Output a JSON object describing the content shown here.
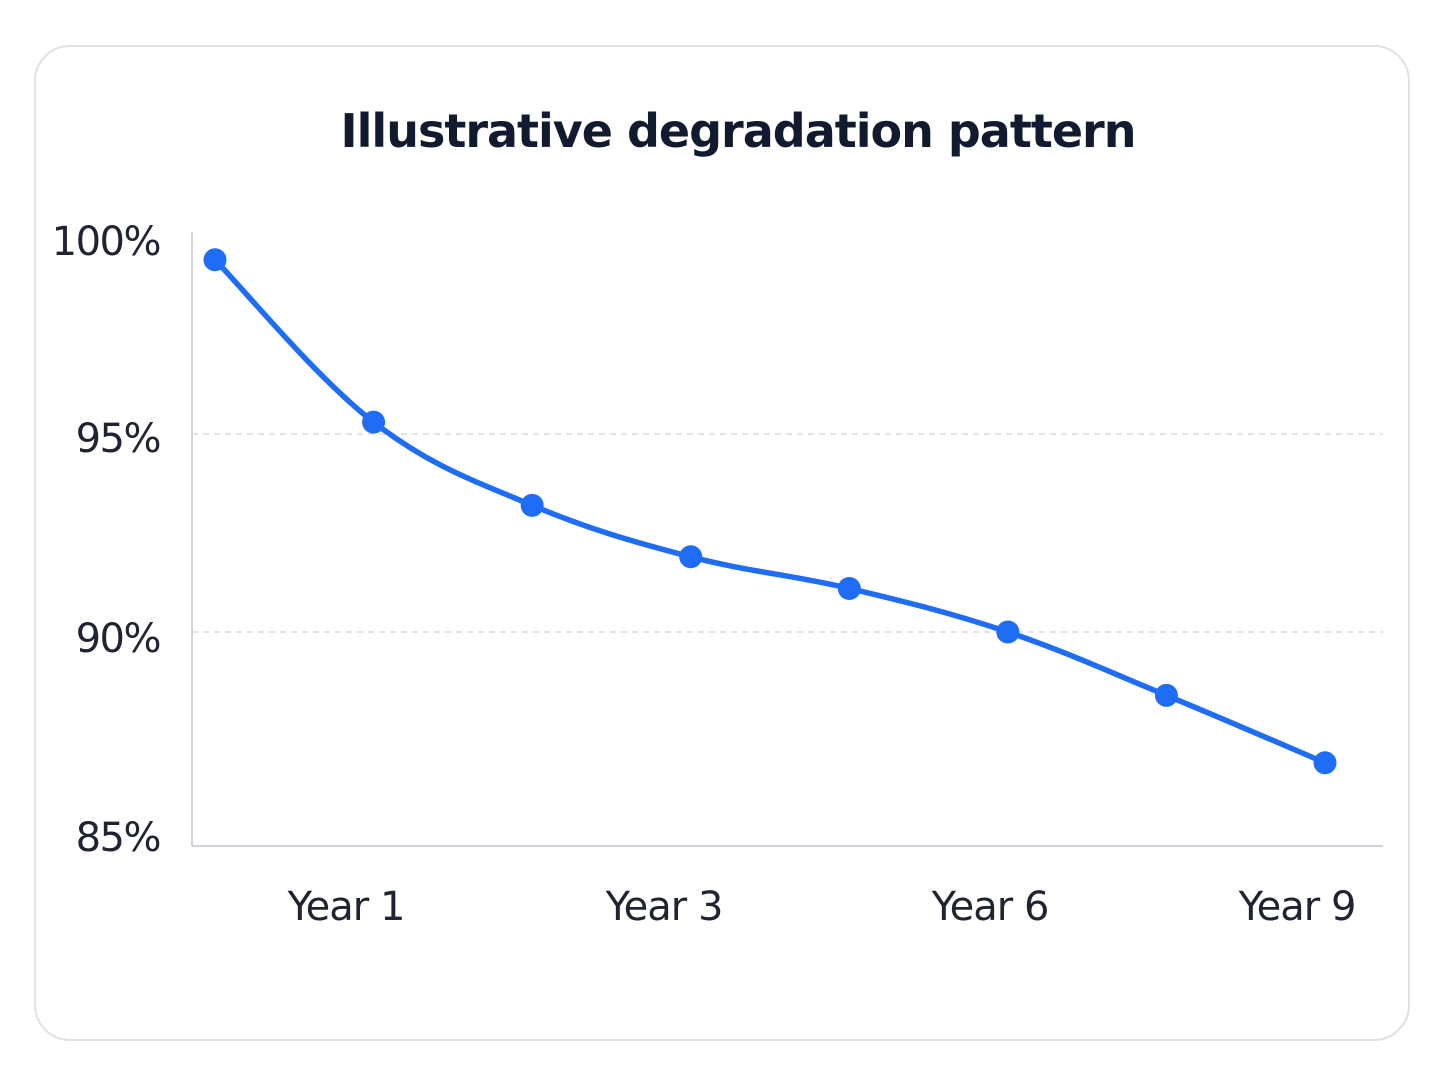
{
  "chart_data": {
    "type": "line",
    "title": "Illustrative degradation pattern",
    "xlabel": "",
    "ylabel": "",
    "x_tick_labels": [
      "Year 1",
      "Year 3",
      "Year 6",
      "Year 9"
    ],
    "y_tick_labels": [
      "100%",
      "95%",
      "90%",
      "85%"
    ],
    "ylim": [
      85,
      100
    ],
    "grid": "dashed horizontal at 90% and 95%",
    "legend": "none",
    "series": [
      {
        "values": [
          99.5,
          95.4,
          93.3,
          92.0,
          91.2,
          90.1,
          88.5,
          86.8
        ]
      }
    ],
    "colors": {
      "line": "#1f6cf5",
      "grid": "#d9dce2",
      "axis": "#d0d3d9",
      "text": "#1f2430",
      "title": "#111a2e",
      "border": "#dfe1e6"
    }
  }
}
